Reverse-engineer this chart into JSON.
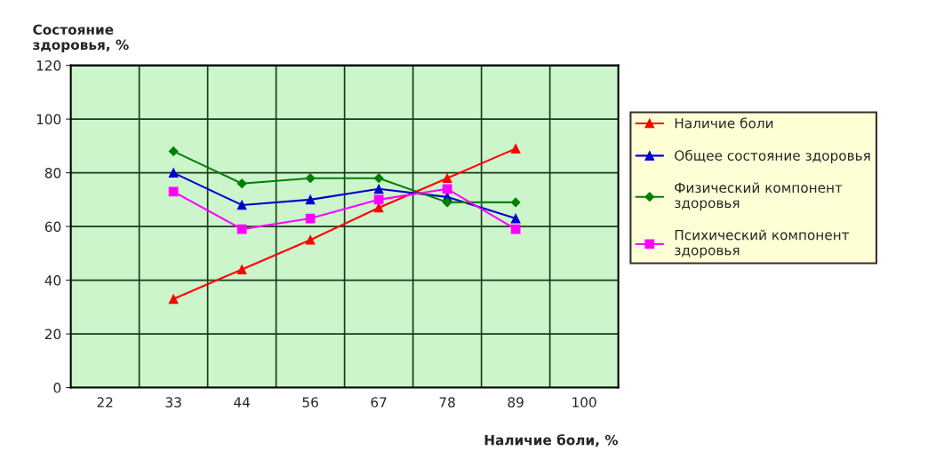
{
  "chart_data": {
    "type": "line",
    "ylabel": "Состояние\nздоровья, %",
    "xlabel": "Наличие боли, %",
    "categories": [
      "22",
      "33",
      "44",
      "56",
      "67",
      "78",
      "89",
      "100"
    ],
    "series": [
      {
        "name": "Наличие боли",
        "color": "#ff0000",
        "marker": "triangle",
        "values": [
          null,
          33,
          44,
          55,
          67,
          78,
          89,
          null
        ]
      },
      {
        "name": "Общее состояние здоровья",
        "color": "#0000cc",
        "marker": "triangle",
        "values": [
          null,
          80,
          68,
          70,
          74,
          71,
          63,
          null
        ]
      },
      {
        "name": "Физический компонент здоровья",
        "color": "#008000",
        "marker": "diamond",
        "values": [
          null,
          88,
          76,
          78,
          78,
          69,
          69,
          null
        ]
      },
      {
        "name": "Психический компонент здоровья",
        "color": "#ff00ff",
        "marker": "square",
        "values": [
          null,
          73,
          59,
          63,
          70,
          74,
          59,
          null
        ]
      }
    ],
    "ylim": [
      0,
      120
    ],
    "yticks": [
      0,
      20,
      40,
      60,
      80,
      100,
      120
    ],
    "grid": true,
    "legend": "right"
  }
}
